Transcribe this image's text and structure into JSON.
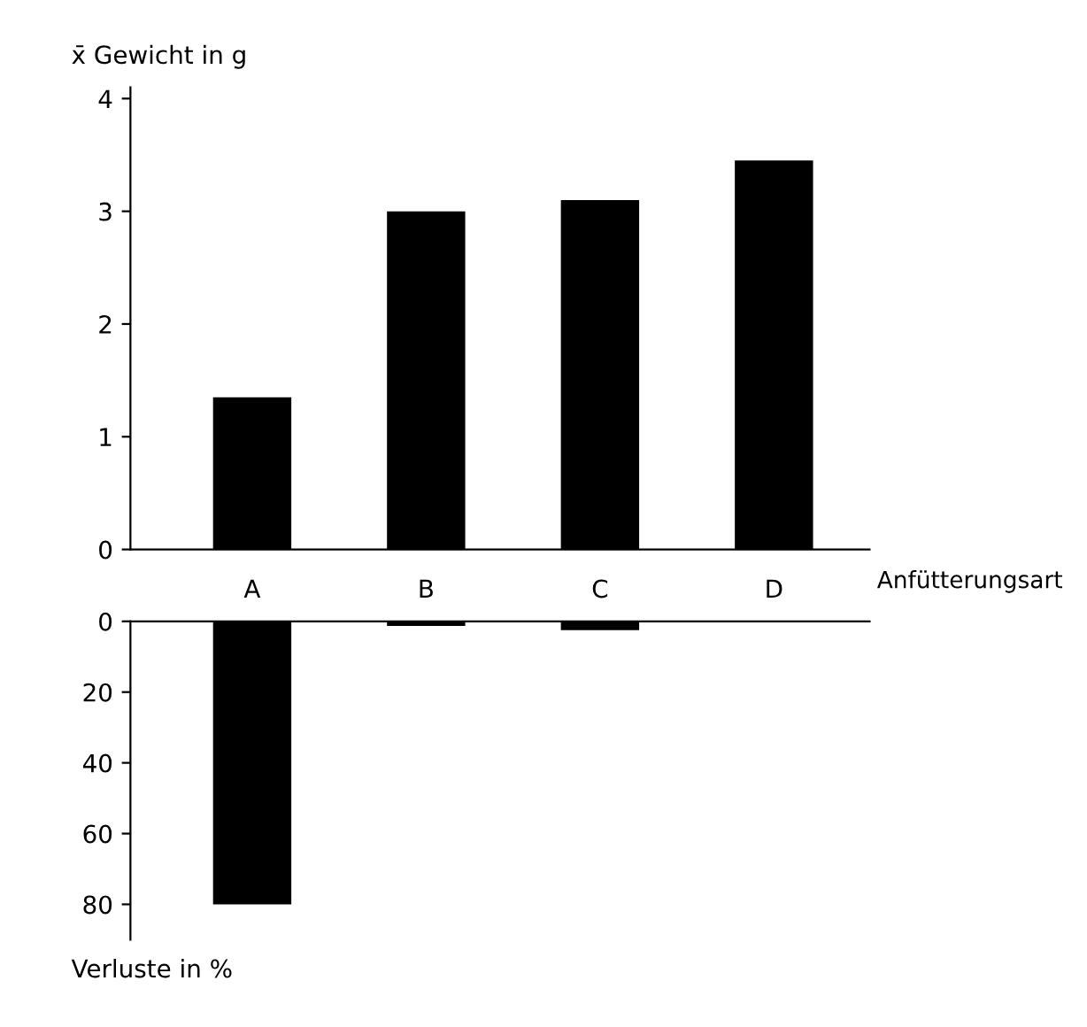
{
  "chart_data": [
    {
      "type": "bar",
      "categories": [
        "A",
        "B",
        "C",
        "D"
      ],
      "values": [
        1.35,
        3.0,
        3.1,
        3.45
      ],
      "color": "#000000",
      "ylim": [
        0,
        4.1
      ],
      "yticks": [
        0,
        1,
        2,
        3,
        4
      ],
      "ylabel": "x̄ Gewicht in g",
      "xlabel": "Anfütterungsart",
      "grid": false,
      "legend": false
    },
    {
      "type": "bar",
      "categories": [
        null,
        null,
        null,
        null
      ],
      "values": [
        80,
        1.3,
        2.5,
        null
      ],
      "color": "#000000",
      "ylim": [
        90,
        0
      ],
      "yticks": [
        0,
        20,
        40,
        60,
        80
      ],
      "ylabel": "Verluste in %",
      "tick_labels": "y",
      "grid": false,
      "legend": false
    }
  ]
}
